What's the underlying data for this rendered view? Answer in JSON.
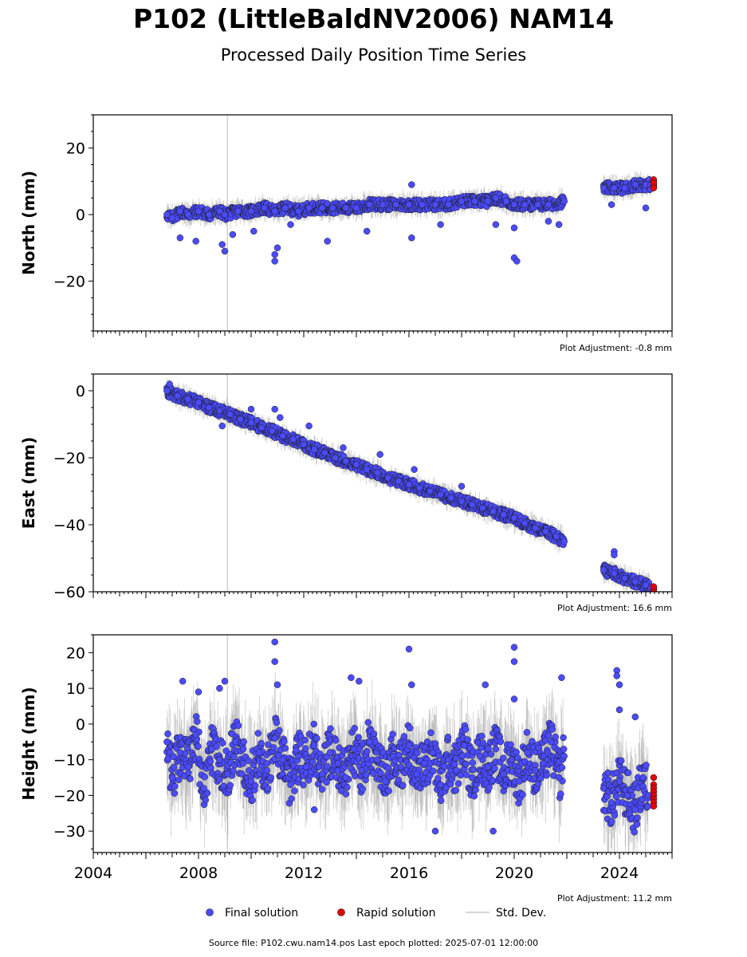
{
  "header": {
    "title": "P102 (LittleBaldNV2006) NAM14",
    "subtitle": "Processed Daily Position Time Series"
  },
  "legend": {
    "final_label": "Final solution",
    "rapid_label": "Rapid solution",
    "std_label": "Std. Dev."
  },
  "footer": {
    "source_text": "Source file: P102.cwu.nam14.pos  Last epoch plotted: 2025-07-01 12:00:00"
  },
  "colors": {
    "final": "#4b4bff",
    "rapid": "#e60000",
    "std": "#a0a0a0",
    "marker_edge": "#1a1a1a"
  },
  "chart_data": [
    {
      "type": "scatter",
      "ylabel": "North (mm)",
      "adjustment_label": "Plot Adjustment: -0.8 mm",
      "xlim": [
        2004,
        2026
      ],
      "ylim": [
        -35,
        30
      ],
      "yticks": [
        -20,
        0,
        20
      ],
      "yticklabels": [
        "−20",
        "0",
        "20"
      ],
      "show_xticklabels": false,
      "series": [
        {
          "name": "Final solution",
          "x": [
            2006.8,
            2007.0,
            2007.3,
            2007.6,
            2008.0,
            2008.4,
            2008.8,
            2009.0,
            2009.5,
            2010.0,
            2010.5,
            2010.9,
            2011.3,
            2011.8,
            2012.2,
            2012.7,
            2013.1,
            2013.6,
            2014.0,
            2014.5,
            2015.0,
            2015.5,
            2016.0,
            2016.5,
            2017.0,
            2017.5,
            2018.0,
            2018.5,
            2019.0,
            2019.3,
            2019.7,
            2020.0,
            2020.4,
            2020.9,
            2021.3,
            2021.9,
            2023.4,
            2023.8,
            2024.2,
            2024.6,
            2025.0,
            2025.2
          ],
          "y": [
            0,
            -1,
            1,
            0,
            1,
            0,
            1,
            0,
            1,
            1,
            2,
            1,
            2,
            1,
            2,
            2,
            2,
            2,
            2,
            3,
            3,
            3,
            3,
            3,
            3,
            3,
            4,
            4,
            4,
            5,
            4,
            3,
            3,
            3,
            3,
            4,
            8,
            8,
            8,
            9,
            9,
            9
          ]
        },
        {
          "name": "Final solution outliers",
          "x": [
            2007.3,
            2007.9,
            2008.9,
            2009.0,
            2009.3,
            2010.1,
            2010.9,
            2010.9,
            2011.0,
            2011.5,
            2012.9,
            2014.4,
            2016.1,
            2016.1,
            2017.2,
            2019.3,
            2020.0,
            2020.0,
            2020.1,
            2021.3,
            2021.7,
            2023.7,
            2025.0
          ],
          "y": [
            -7,
            -8,
            -9,
            -11,
            -6,
            -5,
            -12,
            -14,
            -10,
            -3,
            -8,
            -5,
            -7,
            9,
            -3,
            -3,
            -4,
            -13,
            -14,
            -2,
            -3,
            3,
            2
          ]
        },
        {
          "name": "Rapid solution",
          "x": [
            2025.3,
            2025.3,
            2025.3,
            2025.3,
            2025.3,
            2025.3
          ],
          "y": [
            9,
            10,
            8.5,
            10.5,
            9.5,
            8
          ]
        }
      ]
    },
    {
      "type": "scatter",
      "ylabel": "East (mm)",
      "adjustment_label": "Plot Adjustment: 16.6 mm",
      "xlim": [
        2004,
        2026
      ],
      "ylim": [
        -60,
        5
      ],
      "yticks": [
        -60,
        -40,
        -20,
        0
      ],
      "yticklabels": [
        "−60",
        "−40",
        "−20",
        "0"
      ],
      "show_xticklabels": false,
      "series": [
        {
          "name": "Final solution",
          "x": [
            2006.8,
            2007.2,
            2007.6,
            2008.0,
            2008.4,
            2008.8,
            2009.2,
            2009.6,
            2010.0,
            2010.4,
            2010.8,
            2011.2,
            2011.6,
            2012.0,
            2012.4,
            2012.8,
            2013.2,
            2013.6,
            2014.0,
            2014.4,
            2014.8,
            2015.2,
            2015.6,
            2016.0,
            2016.4,
            2016.8,
            2017.2,
            2017.6,
            2018.0,
            2018.4,
            2018.8,
            2019.2,
            2019.6,
            2020.0,
            2020.4,
            2020.8,
            2021.2,
            2021.6,
            2021.9,
            2023.4,
            2023.8,
            2024.2,
            2024.6,
            2025.0,
            2025.2
          ],
          "y": [
            0,
            -1.5,
            -2.5,
            -3.5,
            -5,
            -6,
            -7,
            -8.5,
            -9.5,
            -11,
            -12,
            -13.5,
            -14.5,
            -16,
            -17.5,
            -18.5,
            -20,
            -21,
            -22,
            -23.5,
            -24.5,
            -26,
            -27,
            -28,
            -29,
            -30,
            -31,
            -32,
            -33,
            -34,
            -35,
            -36,
            -37,
            -38,
            -39.5,
            -41,
            -42,
            -43.5,
            -45,
            -53.5,
            -54.5,
            -56,
            -57,
            -58,
            -59
          ]
        },
        {
          "name": "Final solution outliers",
          "x": [
            2006.9,
            2008.9,
            2010.0,
            2010.9,
            2011.1,
            2012.2,
            2013.5,
            2014.9,
            2016.2,
            2018.0,
            2023.8,
            2023.8
          ],
          "y": [
            2,
            -10.5,
            -5.5,
            -5.5,
            -8,
            -10.5,
            -17,
            -19,
            -23.5,
            -28.5,
            -48,
            -49
          ]
        },
        {
          "name": "Rapid solution",
          "x": [
            2025.3,
            2025.3,
            2025.3,
            2025.3
          ],
          "y": [
            -59,
            -59.5,
            -58.5,
            -60
          ]
        }
      ]
    },
    {
      "type": "scatter",
      "ylabel": "Height (mm)",
      "adjustment_label": "Plot Adjustment: 11.2 mm",
      "xlim": [
        2004,
        2026
      ],
      "ylim": [
        -36,
        25
      ],
      "yticks": [
        -30,
        -20,
        -10,
        0,
        10,
        20
      ],
      "yticklabels": [
        "−30",
        "−20",
        "−10",
        "0",
        "10",
        "20"
      ],
      "xticks": [
        2004,
        2008,
        2012,
        2016,
        2020,
        2024
      ],
      "xticklabels": [
        "2004",
        "2008",
        "2012",
        "2016",
        "2020",
        "2024"
      ],
      "show_xticklabels": true,
      "series": [
        {
          "name": "Final solution",
          "x": [
            2006.8,
            2007.0,
            2007.3,
            2007.6,
            2007.9,
            2008.2,
            2008.5,
            2008.8,
            2009.1,
            2009.4,
            2009.7,
            2010.0,
            2010.3,
            2010.6,
            2010.9,
            2011.2,
            2011.5,
            2011.8,
            2012.1,
            2012.4,
            2012.7,
            2013.0,
            2013.3,
            2013.6,
            2013.9,
            2014.2,
            2014.5,
            2014.8,
            2015.1,
            2015.4,
            2015.7,
            2016.0,
            2016.3,
            2016.6,
            2016.9,
            2017.2,
            2017.5,
            2017.8,
            2018.1,
            2018.4,
            2018.7,
            2019.0,
            2019.3,
            2019.6,
            2019.9,
            2020.2,
            2020.5,
            2020.8,
            2021.1,
            2021.4,
            2021.7,
            2021.9,
            2023.4,
            2023.7,
            2024.0,
            2024.3,
            2024.6,
            2024.9,
            2025.1
          ],
          "y": [
            -5,
            -15,
            -8,
            -12,
            -3,
            -18,
            -7,
            -10,
            -14,
            -5,
            -11,
            -16,
            -8,
            -13,
            -4,
            -10,
            -17,
            -9,
            -12,
            -6,
            -14,
            -8,
            -11,
            -15,
            -7,
            -13,
            -5,
            -10,
            -16,
            -9,
            -12,
            -6,
            -14,
            -11,
            -8,
            -17,
            -10,
            -13,
            -6,
            -15,
            -9,
            -12,
            -7,
            -14,
            -10,
            -16,
            -8,
            -13,
            -11,
            -5,
            -15,
            -9,
            -18,
            -22,
            -16,
            -20,
            -24,
            -15,
            -20
          ]
        },
        {
          "name": "Final solution outliers",
          "x": [
            2007.4,
            2008.0,
            2008.8,
            2009.0,
            2010.9,
            2010.9,
            2011.0,
            2013.8,
            2014.1,
            2016.0,
            2016.1,
            2018.9,
            2020.0,
            2020.0,
            2020.0,
            2021.8,
            2023.9,
            2023.9,
            2024.0,
            2024.0,
            2024.6,
            2017.0,
            2012.4,
            2019.2
          ],
          "y": [
            12,
            9,
            10,
            12,
            23,
            17.5,
            11,
            13,
            12,
            21,
            11,
            11,
            21.5,
            17.5,
            7,
            13,
            15,
            13.5,
            11,
            4,
            2,
            -30,
            -24,
            -30
          ]
        },
        {
          "name": "Rapid solution",
          "x": [
            2025.3,
            2025.3,
            2025.3,
            2025.3,
            2025.3,
            2025.3,
            2025.3,
            2025.3
          ],
          "y": [
            -15,
            -17,
            -18,
            -19,
            -20,
            -21,
            -22,
            -23
          ]
        }
      ]
    }
  ]
}
